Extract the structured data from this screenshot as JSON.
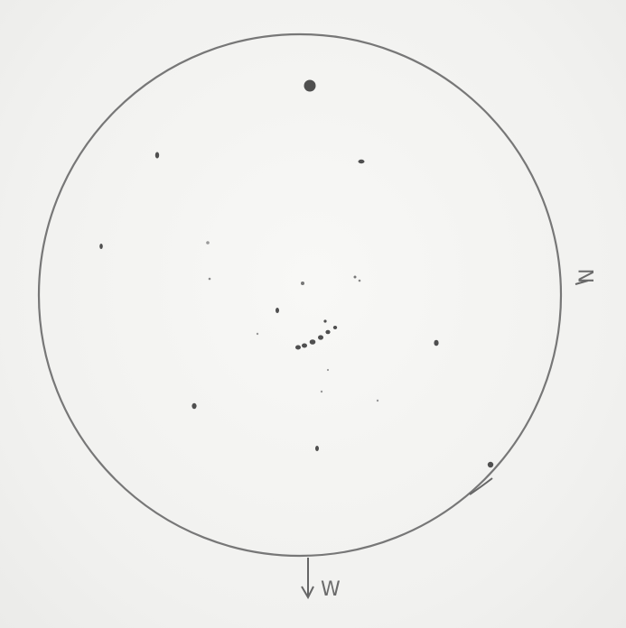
{
  "sketch": {
    "directions": {
      "north": "N",
      "west": "W"
    },
    "ink_color": "#5e5e5e",
    "paper_color": "#f3f3f1"
  }
}
